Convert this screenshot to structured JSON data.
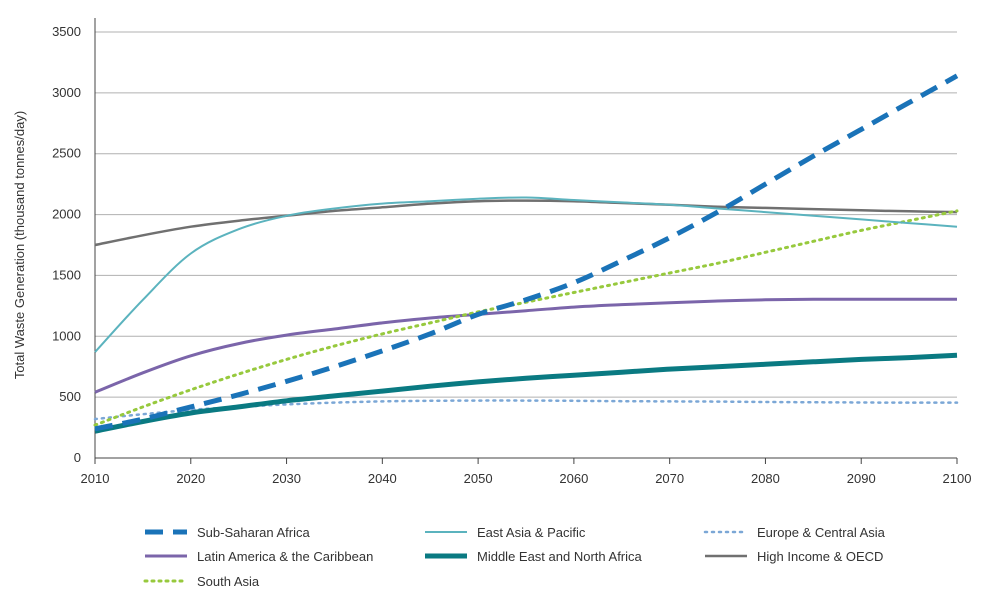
{
  "chart_data": {
    "type": "line",
    "title": "",
    "xlabel": "",
    "ylabel": "Total Waste Generation (thousand tonnes/day)",
    "xlim": [
      2010,
      2100
    ],
    "ylim": [
      0,
      3500
    ],
    "x_ticks": [
      2010,
      2020,
      2030,
      2040,
      2050,
      2060,
      2070,
      2080,
      2090,
      2100
    ],
    "y_ticks": [
      0,
      500,
      1000,
      1500,
      2000,
      2500,
      3000,
      3500
    ],
    "grid": "horizontal",
    "legend_position": "bottom",
    "x": [
      2010,
      2015,
      2020,
      2025,
      2030,
      2035,
      2040,
      2045,
      2050,
      2055,
      2060,
      2065,
      2070,
      2075,
      2080,
      2085,
      2090,
      2095,
      2100
    ],
    "series": [
      {
        "name": "Sub-Saharan Africa",
        "color": "#1a73b8",
        "style": "dashed",
        "width": 5,
        "values": [
          240,
          320,
          420,
          520,
          630,
          750,
          880,
          1020,
          1180,
          1300,
          1440,
          1620,
          1810,
          2020,
          2250,
          2480,
          2700,
          2920,
          3140
        ]
      },
      {
        "name": "East Asia & Pacific",
        "color": "#5bb3be",
        "style": "solid",
        "width": 2,
        "values": [
          870,
          1300,
          1680,
          1880,
          1990,
          2050,
          2090,
          2110,
          2130,
          2140,
          2120,
          2100,
          2080,
          2050,
          2020,
          1990,
          1960,
          1930,
          1900
        ]
      },
      {
        "name": "Europe & Central Asia",
        "color": "#7ba7d6",
        "style": "dotted",
        "width": 2.5,
        "values": [
          320,
          360,
          395,
          420,
          440,
          455,
          465,
          470,
          472,
          472,
          470,
          467,
          465,
          463,
          460,
          458,
          456,
          455,
          455
        ]
      },
      {
        "name": "Latin America & the Caribbean",
        "color": "#7b65aa",
        "style": "solid",
        "width": 3,
        "values": [
          540,
          700,
          840,
          940,
          1010,
          1060,
          1110,
          1150,
          1180,
          1210,
          1240,
          1260,
          1275,
          1290,
          1300,
          1305,
          1305,
          1305,
          1305
        ]
      },
      {
        "name": "Middle East and North Africa",
        "color": "#0a7a82",
        "style": "solid",
        "width": 5,
        "values": [
          220,
          300,
          370,
          420,
          470,
          510,
          550,
          590,
          625,
          655,
          680,
          705,
          730,
          750,
          770,
          790,
          810,
          825,
          845
        ]
      },
      {
        "name": "High Income & OECD",
        "color": "#707070",
        "style": "solid",
        "width": 2.5,
        "values": [
          1750,
          1830,
          1900,
          1950,
          1990,
          2030,
          2060,
          2090,
          2110,
          2115,
          2110,
          2095,
          2080,
          2065,
          2055,
          2045,
          2035,
          2027,
          2020
        ]
      },
      {
        "name": "South Asia",
        "color": "#97c93d",
        "style": "dotted",
        "width": 3,
        "values": [
          270,
          420,
          560,
          690,
          810,
          920,
          1020,
          1110,
          1200,
          1280,
          1360,
          1440,
          1520,
          1600,
          1690,
          1780,
          1870,
          1950,
          2030
        ]
      }
    ]
  }
}
